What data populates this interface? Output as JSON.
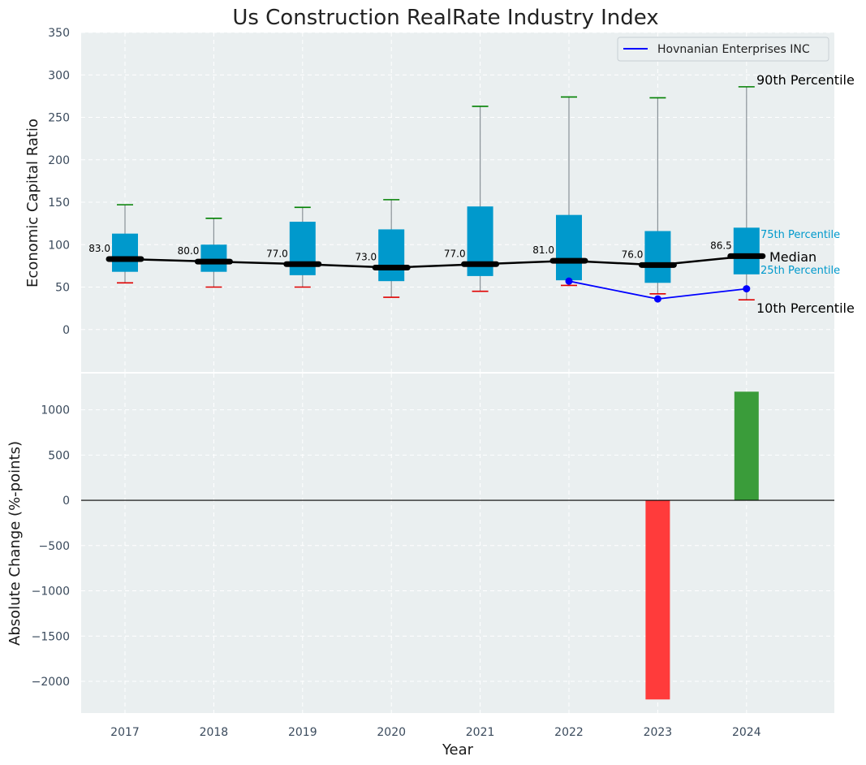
{
  "chart_data": [
    {
      "type": "box",
      "title": "Us Construction RealRate Industry Index",
      "ylabel": "Economic Capital Ratio",
      "ylim": [
        -50,
        350
      ],
      "yticks": [
        0,
        50,
        100,
        150,
        200,
        250,
        300,
        350
      ],
      "grid": true,
      "categories": [
        "2017",
        "2018",
        "2019",
        "2020",
        "2021",
        "2022",
        "2023",
        "2024"
      ],
      "p10": [
        55,
        50,
        50,
        38,
        45,
        52,
        42,
        35
      ],
      "p25": [
        68,
        68,
        64,
        57,
        63,
        58,
        55,
        65
      ],
      "median": [
        83.0,
        80.0,
        77.0,
        73.0,
        77.0,
        81.0,
        76.0,
        86.5
      ],
      "median_labels": [
        "83.0",
        "80.0",
        "77.0",
        "73.0",
        "77.0",
        "81.0",
        "76.0",
        "86.5"
      ],
      "p75": [
        113,
        100,
        127,
        118,
        145,
        135,
        116,
        120
      ],
      "p90": [
        147,
        131,
        144,
        153,
        263,
        274,
        273,
        286
      ],
      "company": {
        "name": "Hovnanian Enterprises INC",
        "x": [
          "2022",
          "2023",
          "2024"
        ],
        "values": [
          57,
          36,
          48
        ],
        "color": "#0000ff"
      },
      "annotations": {
        "p90": "90th Percentile",
        "p75": "75th Percentile",
        "median": "Median",
        "p25": "25th Percentile",
        "p10": "10th Percentile"
      },
      "legend": {
        "position": "top-right"
      },
      "colors": {
        "box": "#0099cc",
        "median": "#000000",
        "p90_cap": "#008000",
        "p10_cap": "#e00000",
        "background": "#eaeff0"
      }
    },
    {
      "type": "bar",
      "xlabel": "Year",
      "ylabel": "Absolute Change (%-points)",
      "ylim": [
        -2350,
        1400
      ],
      "yticks": [
        -2000,
        -1500,
        -1000,
        -500,
        0,
        500,
        1000
      ],
      "ytick_labels": [
        "−2000",
        "−1500",
        "−1000",
        "−500",
        "0",
        "500",
        "1000"
      ],
      "grid": true,
      "categories": [
        "2017",
        "2018",
        "2019",
        "2020",
        "2021",
        "2022",
        "2023",
        "2024"
      ],
      "bars": {
        "x": [
          "2023",
          "2024"
        ],
        "values": [
          -2200,
          1200
        ]
      },
      "colors": {
        "positive": "#3a9c3a",
        "negative": "#ff3b3b"
      }
    }
  ]
}
